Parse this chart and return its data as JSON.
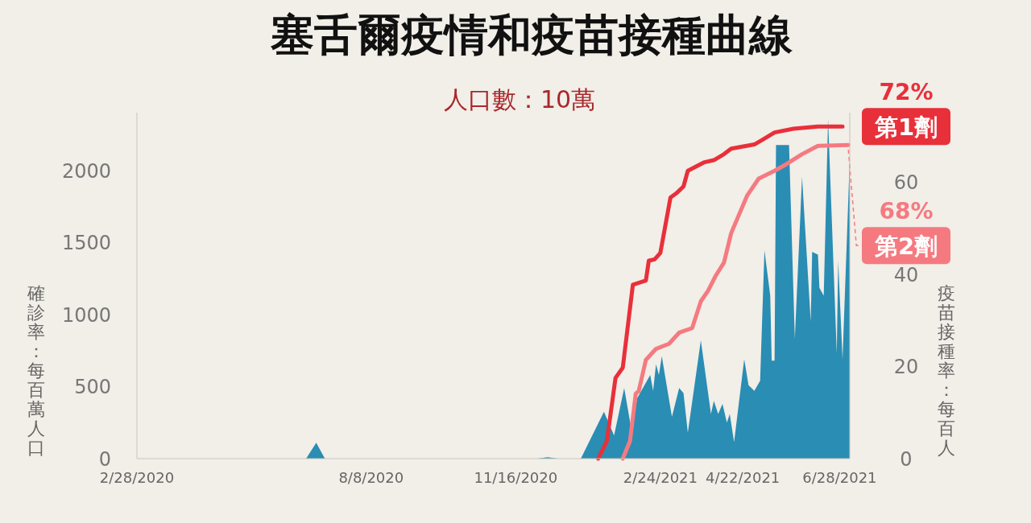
{
  "chart_data": {
    "type": "area",
    "title": "塞舌爾疫情和疫苗接種曲線",
    "subtitle": "人口數：10萬",
    "ylabel": "確診率：每百萬人口",
    "y2label": "疫苗接種率：每百人",
    "xlim": [
      "2020-02-28",
      "2021-07-05"
    ],
    "xticks": [
      {
        "value": "2020-02-28",
        "label": "2/28/2020"
      },
      {
        "value": "2020-08-08",
        "label": "8/8/2020"
      },
      {
        "value": "2020-11-16",
        "label": "11/16/2020"
      },
      {
        "value": "2021-02-24",
        "label": "2/24/2021"
      },
      {
        "value": "2021-04-22",
        "label": "4/22/2021"
      },
      {
        "value": "2021-06-28",
        "label": "6/28/2021"
      }
    ],
    "ylim": [
      0,
      2400
    ],
    "yticks": [
      0,
      500,
      1000,
      1500,
      2000
    ],
    "y2lim": [
      0,
      75
    ],
    "y2ticks": [
      0,
      20,
      40,
      60
    ],
    "grid": false,
    "series": [
      {
        "color": "#2a8db3",
        "x": [
          "2020-02-28",
          "2020-06-24",
          "2020-07-01",
          "2020-07-07",
          "2020-12-01",
          "2020-12-08",
          "2020-12-15",
          "2020-12-31",
          "2021-01-16",
          "2021-01-23",
          "2021-01-30",
          "2021-02-04",
          "2021-02-08",
          "2021-02-17",
          "2021-02-19",
          "2021-02-21",
          "2021-02-23",
          "2021-02-25",
          "2021-03-04",
          "2021-03-09",
          "2021-03-12",
          "2021-03-15",
          "2021-03-24",
          "2021-03-31",
          "2021-04-02",
          "2021-04-05",
          "2021-04-08",
          "2021-04-11",
          "2021-04-13",
          "2021-04-16",
          "2021-04-23",
          "2021-04-26",
          "2021-04-30",
          "2021-05-04",
          "2021-05-07",
          "2021-05-11",
          "2021-05-12",
          "2021-05-14",
          "2021-05-15",
          "2021-05-24",
          "2021-05-28",
          "2021-06-02",
          "2021-06-08",
          "2021-06-09",
          "2021-06-13",
          "2021-06-14",
          "2021-06-17",
          "2021-06-20",
          "2021-06-26",
          "2021-06-27",
          "2021-06-30",
          "2021-07-05"
        ],
        "values": [
          0,
          0,
          110,
          0,
          0,
          10,
          0,
          0,
          325,
          160,
          490,
          200,
          420,
          580,
          470,
          655,
          580,
          710,
          290,
          490,
          455,
          180,
          820,
          310,
          400,
          310,
          380,
          250,
          310,
          115,
          690,
          510,
          470,
          540,
          1445,
          1130,
          680,
          680,
          2175,
          2175,
          830,
          1955,
          950,
          1435,
          1415,
          1185,
          1130,
          2355,
          730,
          1370,
          690,
          2080
        ]
      },
      {
        "type": "line",
        "axis": "y2",
        "name": "第1劑",
        "color": "#e8303a",
        "x": [
          "2021-01-12",
          "2021-01-18",
          "2021-01-24",
          "2021-01-29",
          "2021-02-05",
          "2021-02-14",
          "2021-02-16",
          "2021-02-20",
          "2021-02-24",
          "2021-03-03",
          "2021-03-07",
          "2021-03-12",
          "2021-03-15",
          "2021-03-26",
          "2021-04-02",
          "2021-04-09",
          "2021-04-14",
          "2021-04-30",
          "2021-05-05",
          "2021-05-14",
          "2021-05-27",
          "2021-06-13",
          "2021-06-30"
        ],
        "values": [
          0,
          3.8,
          17.5,
          19.7,
          37.7,
          38.6,
          42.9,
          43.2,
          44.6,
          56.6,
          57.5,
          59,
          62.4,
          64.2,
          64.7,
          66,
          67.2,
          68.1,
          69,
          70.7,
          71.5,
          72,
          72
        ],
        "value_labels": [
          null,
          null,
          null,
          null,
          null,
          null,
          null,
          null,
          null,
          null,
          null,
          null,
          null,
          null,
          null,
          null,
          null,
          null,
          null,
          null,
          null,
          null,
          "72%"
        ]
      },
      {
        "type": "line",
        "axis": "y2",
        "name": "第2劑",
        "color": "#f57a80",
        "x": [
          "2021-01-29",
          "2021-02-03",
          "2021-02-07",
          "2021-02-09",
          "2021-02-14",
          "2021-02-21",
          "2021-03-02",
          "2021-03-09",
          "2021-03-18",
          "2021-03-24",
          "2021-03-29",
          "2021-04-03",
          "2021-04-09",
          "2021-04-14",
          "2021-04-25",
          "2021-05-03",
          "2021-05-14",
          "2021-05-22",
          "2021-06-02",
          "2021-06-13",
          "2021-07-04"
        ],
        "values": [
          0,
          3.8,
          14.1,
          14.6,
          21.4,
          23.8,
          24.9,
          27.3,
          28.3,
          34.1,
          36.4,
          39.5,
          42.5,
          48.9,
          57,
          60.7,
          62.4,
          63.8,
          66,
          67.8,
          68
        ],
        "value_labels": [
          null,
          null,
          null,
          null,
          null,
          null,
          null,
          null,
          null,
          null,
          null,
          null,
          null,
          null,
          null,
          null,
          null,
          null,
          null,
          null,
          "68%"
        ]
      }
    ]
  }
}
